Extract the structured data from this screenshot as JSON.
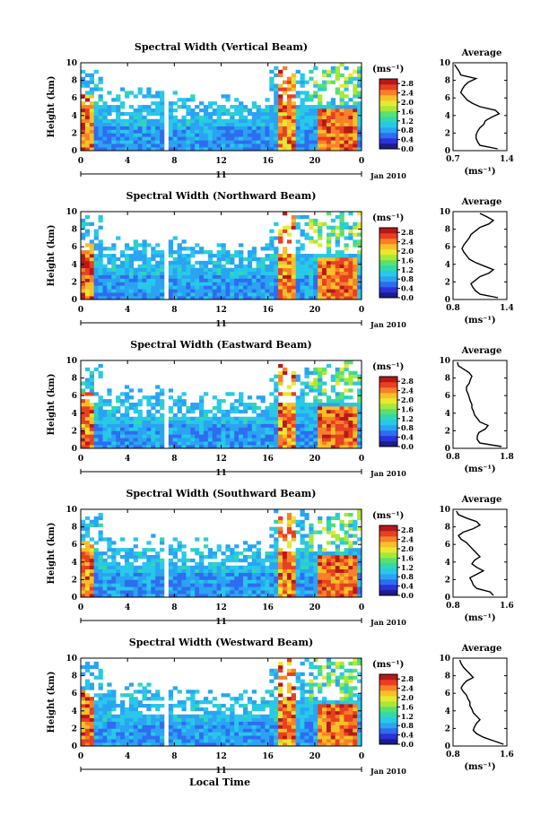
{
  "figure": {
    "xlabel": "Local Time",
    "colors": {
      "colorbar": [
        "#1c1c8c",
        "#2a32d8",
        "#2e6cf0",
        "#2aa4f2",
        "#28c8e8",
        "#30d8b0",
        "#58e070",
        "#a8e838",
        "#e8e830",
        "#f8c028",
        "#f88028",
        "#e84020",
        "#b81818"
      ]
    }
  },
  "chart_data": [
    {
      "type": "heatmap",
      "title": "Spectral Width (Vertical Beam)",
      "ylabel": "Height (km)",
      "x_ticks": [
        "0",
        "4",
        "8",
        "12",
        "16",
        "20",
        "0"
      ],
      "y_ticks": [
        "0",
        "2",
        "4",
        "6",
        "8",
        "10"
      ],
      "xlim": [
        0,
        24
      ],
      "ylim": [
        0,
        10
      ],
      "date_day": "11",
      "date_label": "Jan 2010",
      "colorbar": {
        "unit": "(ms⁻¹)",
        "ticks": [
          "2.8",
          "2.4",
          "2.0",
          "1.6",
          "1.2",
          "0.8",
          "0.4",
          "0.0"
        ],
        "range": [
          0,
          3.0
        ]
      },
      "average": {
        "title": "Average",
        "xlabel": "(ms⁻¹)",
        "x_ticks": [
          "0.7",
          "1.4"
        ],
        "y_ticks": [
          "0",
          "2",
          "4",
          "6",
          "8",
          "10"
        ],
        "xlim": [
          0.7,
          1.4
        ],
        "height": [
          0.2,
          0.6,
          1.0,
          1.4,
          1.8,
          2.2,
          2.6,
          3.0,
          3.4,
          3.8,
          4.2,
          4.6,
          5.0,
          5.4,
          5.8,
          6.2,
          6.6,
          7.0,
          7.4,
          7.8,
          8.2,
          8.6,
          9.0,
          9.4,
          9.8
        ],
        "value": [
          1.28,
          1.05,
          1.02,
          1.0,
          1.0,
          1.02,
          1.05,
          1.1,
          1.12,
          1.2,
          1.3,
          1.25,
          1.05,
          0.95,
          0.88,
          0.84,
          0.8,
          0.82,
          0.85,
          0.9,
          1.0,
          0.8,
          0.78,
          0.75,
          0.72
        ]
      }
    },
    {
      "type": "heatmap",
      "title": "Spectral Width (Northward Beam)",
      "ylabel": "Height (km)",
      "x_ticks": [
        "0",
        "4",
        "8",
        "12",
        "16",
        "20",
        "0"
      ],
      "y_ticks": [
        "0",
        "2",
        "4",
        "6",
        "8",
        "10"
      ],
      "xlim": [
        0,
        24
      ],
      "ylim": [
        0,
        10
      ],
      "date_day": "11",
      "date_label": "Jan 2010",
      "colorbar": {
        "unit": "(ms⁻¹)",
        "ticks": [
          "2.8",
          "2.4",
          "2.0",
          "1.6",
          "1.2",
          "0.8",
          "0.4",
          "0.0"
        ],
        "range": [
          0,
          3.0
        ]
      },
      "average": {
        "title": "Average",
        "xlabel": "(ms⁻¹)",
        "x_ticks": [
          "0.8",
          "1.4"
        ],
        "y_ticks": [
          "0",
          "2",
          "4",
          "6",
          "8",
          "10"
        ],
        "xlim": [
          0.8,
          1.4
        ],
        "height": [
          0.2,
          0.6,
          1.0,
          1.4,
          1.8,
          2.2,
          2.6,
          3.0,
          3.4,
          3.8,
          4.2,
          4.6,
          5.0,
          5.4,
          5.8,
          6.2,
          6.6,
          7.0,
          7.4,
          7.8,
          8.2,
          8.6,
          9.0,
          9.4,
          9.8
        ],
        "value": [
          1.3,
          1.1,
          1.05,
          1.02,
          1.0,
          1.05,
          1.1,
          1.2,
          1.25,
          1.15,
          1.05,
          0.98,
          0.95,
          0.92,
          0.9,
          0.92,
          0.95,
          0.98,
          1.0,
          1.05,
          1.1,
          1.2,
          1.25,
          1.18,
          1.1
        ]
      }
    },
    {
      "type": "heatmap",
      "title": "Spectral Width (Eastward Beam)",
      "ylabel": "Height (km)",
      "x_ticks": [
        "0",
        "4",
        "8",
        "12",
        "16",
        "20",
        "0"
      ],
      "y_ticks": [
        "0",
        "2",
        "4",
        "6",
        "8",
        "10"
      ],
      "xlim": [
        0,
        24
      ],
      "ylim": [
        0,
        10
      ],
      "date_day": "11",
      "date_label": "Jan 2010",
      "colorbar": {
        "unit": "(ms⁻¹)",
        "ticks": [
          "2.8",
          "2.4",
          "2.0",
          "1.6",
          "1.2",
          "0.8",
          "0.4",
          "0.0"
        ],
        "range": [
          0,
          3.0
        ]
      },
      "average": {
        "title": "Average",
        "xlabel": "(ms⁻¹)",
        "x_ticks": [
          "0.8",
          "1.8"
        ],
        "y_ticks": [
          "0",
          "2",
          "4",
          "6",
          "8",
          "10"
        ],
        "xlim": [
          0.8,
          1.8
        ],
        "height": [
          0.2,
          0.6,
          1.0,
          1.4,
          1.8,
          2.2,
          2.6,
          3.0,
          3.4,
          3.8,
          4.2,
          4.6,
          5.0,
          5.4,
          5.8,
          6.2,
          6.6,
          7.0,
          7.4,
          7.8,
          8.2,
          8.6,
          9.0,
          9.4,
          9.8
        ],
        "value": [
          1.7,
          1.3,
          1.25,
          1.25,
          1.28,
          1.4,
          1.45,
          1.3,
          1.25,
          1.2,
          1.18,
          1.15,
          1.15,
          1.12,
          1.1,
          1.08,
          1.05,
          1.05,
          1.1,
          1.12,
          1.15,
          1.1,
          1.0,
          0.9,
          0.88
        ]
      }
    },
    {
      "type": "heatmap",
      "title": "Spectral Width (Southward Beam)",
      "ylabel": "Height (km)",
      "x_ticks": [
        "0",
        "4",
        "8",
        "12",
        "16",
        "20",
        "0"
      ],
      "y_ticks": [
        "0",
        "2",
        "4",
        "6",
        "8",
        "10"
      ],
      "xlim": [
        0,
        24
      ],
      "ylim": [
        0,
        10
      ],
      "date_day": "11",
      "date_label": "Jan 2010",
      "colorbar": {
        "unit": "(ms⁻¹)",
        "ticks": [
          "2.8",
          "2.4",
          "2.0",
          "1.6",
          "1.2",
          "0.8",
          "0.4",
          "0.0"
        ],
        "range": [
          0,
          3.0
        ]
      },
      "average": {
        "title": "Average",
        "xlabel": "(ms⁻¹)",
        "x_ticks": [
          "0.8",
          "1.6"
        ],
        "y_ticks": [
          "0",
          "2",
          "4",
          "6",
          "8",
          "10"
        ],
        "xlim": [
          0.8,
          1.6
        ],
        "height": [
          0.2,
          0.6,
          1.0,
          1.4,
          1.8,
          2.2,
          2.6,
          3.0,
          3.4,
          3.8,
          4.2,
          4.6,
          5.0,
          5.4,
          5.8,
          6.2,
          6.6,
          7.0,
          7.4,
          7.8,
          8.2,
          8.6,
          9.0,
          9.4,
          9.8
        ],
        "value": [
          1.4,
          1.35,
          1.15,
          1.1,
          1.08,
          1.05,
          1.15,
          1.25,
          1.15,
          1.08,
          1.12,
          1.2,
          1.15,
          1.1,
          1.05,
          1.0,
          0.92,
          0.88,
          0.95,
          1.1,
          1.2,
          1.15,
          1.0,
          0.88,
          0.85
        ]
      }
    },
    {
      "type": "heatmap",
      "title": "Spectral Width (Westward Beam)",
      "ylabel": "Height (km)",
      "x_ticks": [
        "0",
        "4",
        "8",
        "12",
        "16",
        "20",
        "0"
      ],
      "y_ticks": [
        "0",
        "2",
        "4",
        "6",
        "8",
        "10"
      ],
      "xlim": [
        0,
        24
      ],
      "ylim": [
        0,
        10
      ],
      "date_day": "11",
      "date_label": "Jan 2010",
      "colorbar": {
        "unit": "(ms⁻¹)",
        "ticks": [
          "2.8",
          "2.4",
          "2.0",
          "1.6",
          "1.2",
          "0.8",
          "0.4",
          "0.0"
        ],
        "range": [
          0,
          3.0
        ]
      },
      "average": {
        "title": "Average",
        "xlabel": "(ms⁻¹)",
        "x_ticks": [
          "0.8",
          "1.6"
        ],
        "y_ticks": [
          "0",
          "2",
          "4",
          "6",
          "8",
          "10"
        ],
        "xlim": [
          0.8,
          1.6
        ],
        "height": [
          0.2,
          0.6,
          1.0,
          1.4,
          1.8,
          2.2,
          2.6,
          3.0,
          3.4,
          3.8,
          4.2,
          4.6,
          5.0,
          5.4,
          5.8,
          6.2,
          6.6,
          7.0,
          7.4,
          7.8,
          8.2,
          8.6,
          9.0,
          9.4,
          9.8
        ],
        "value": [
          1.55,
          1.4,
          1.25,
          1.15,
          1.1,
          1.12,
          1.15,
          1.2,
          1.15,
          1.1,
          1.08,
          1.05,
          1.05,
          1.02,
          1.0,
          0.95,
          0.92,
          0.95,
          1.0,
          1.1,
          1.05,
          1.0,
          0.95,
          0.92,
          0.9
        ]
      }
    }
  ]
}
